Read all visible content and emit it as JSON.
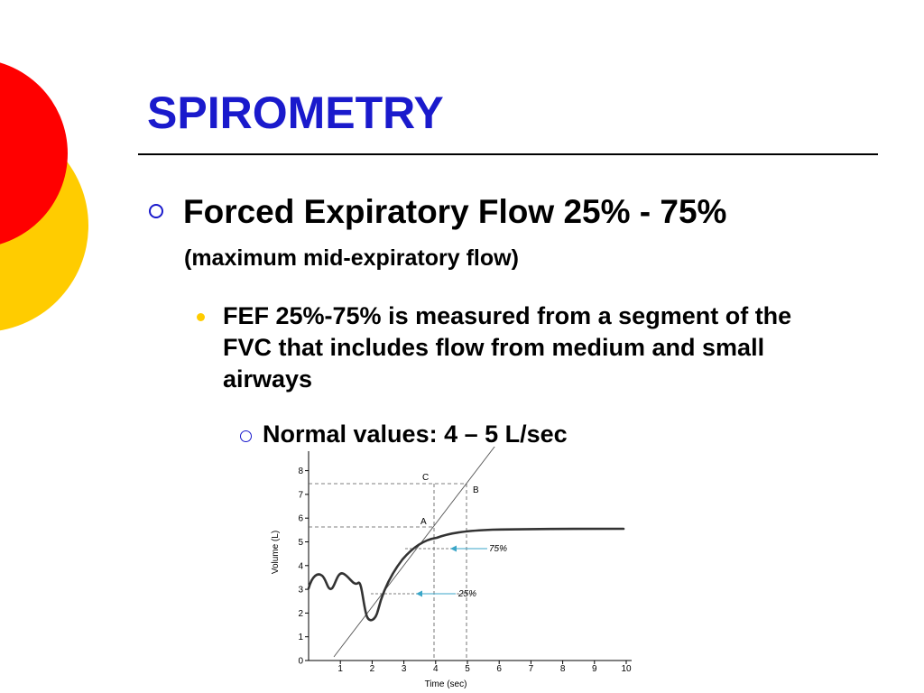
{
  "slide": {
    "title": "SPIROMETRY",
    "bullet1": "Forced Expiratory Flow 25% - 75%",
    "bullet1_sub": "(maximum mid-expiratory flow)",
    "bullet2": "FEF 25%-75% is measured from a segment of the FVC that includes flow from medium and small airways",
    "bullet3": "Normal values:  4 – 5 L/sec"
  },
  "colors": {
    "title": "#1a1acc",
    "deco_red": "#ff0000",
    "deco_yellow": "#ffcc00",
    "bullet_yellow": "#ffcc00",
    "arrow": "#3aa6c8"
  },
  "diagram": {
    "ylabel": "Volume (L)",
    "xlabel": "Time (sec)",
    "xticks": [
      "1",
      "2",
      "3",
      "4",
      "5",
      "6",
      "7",
      "8",
      "9",
      "10"
    ],
    "yticks": [
      "0",
      "1",
      "2",
      "3",
      "4",
      "5",
      "6",
      "7",
      "8"
    ],
    "label_a": "A",
    "label_b": "B",
    "label_c": "C",
    "label_75": "75%",
    "label_25": "25%"
  }
}
